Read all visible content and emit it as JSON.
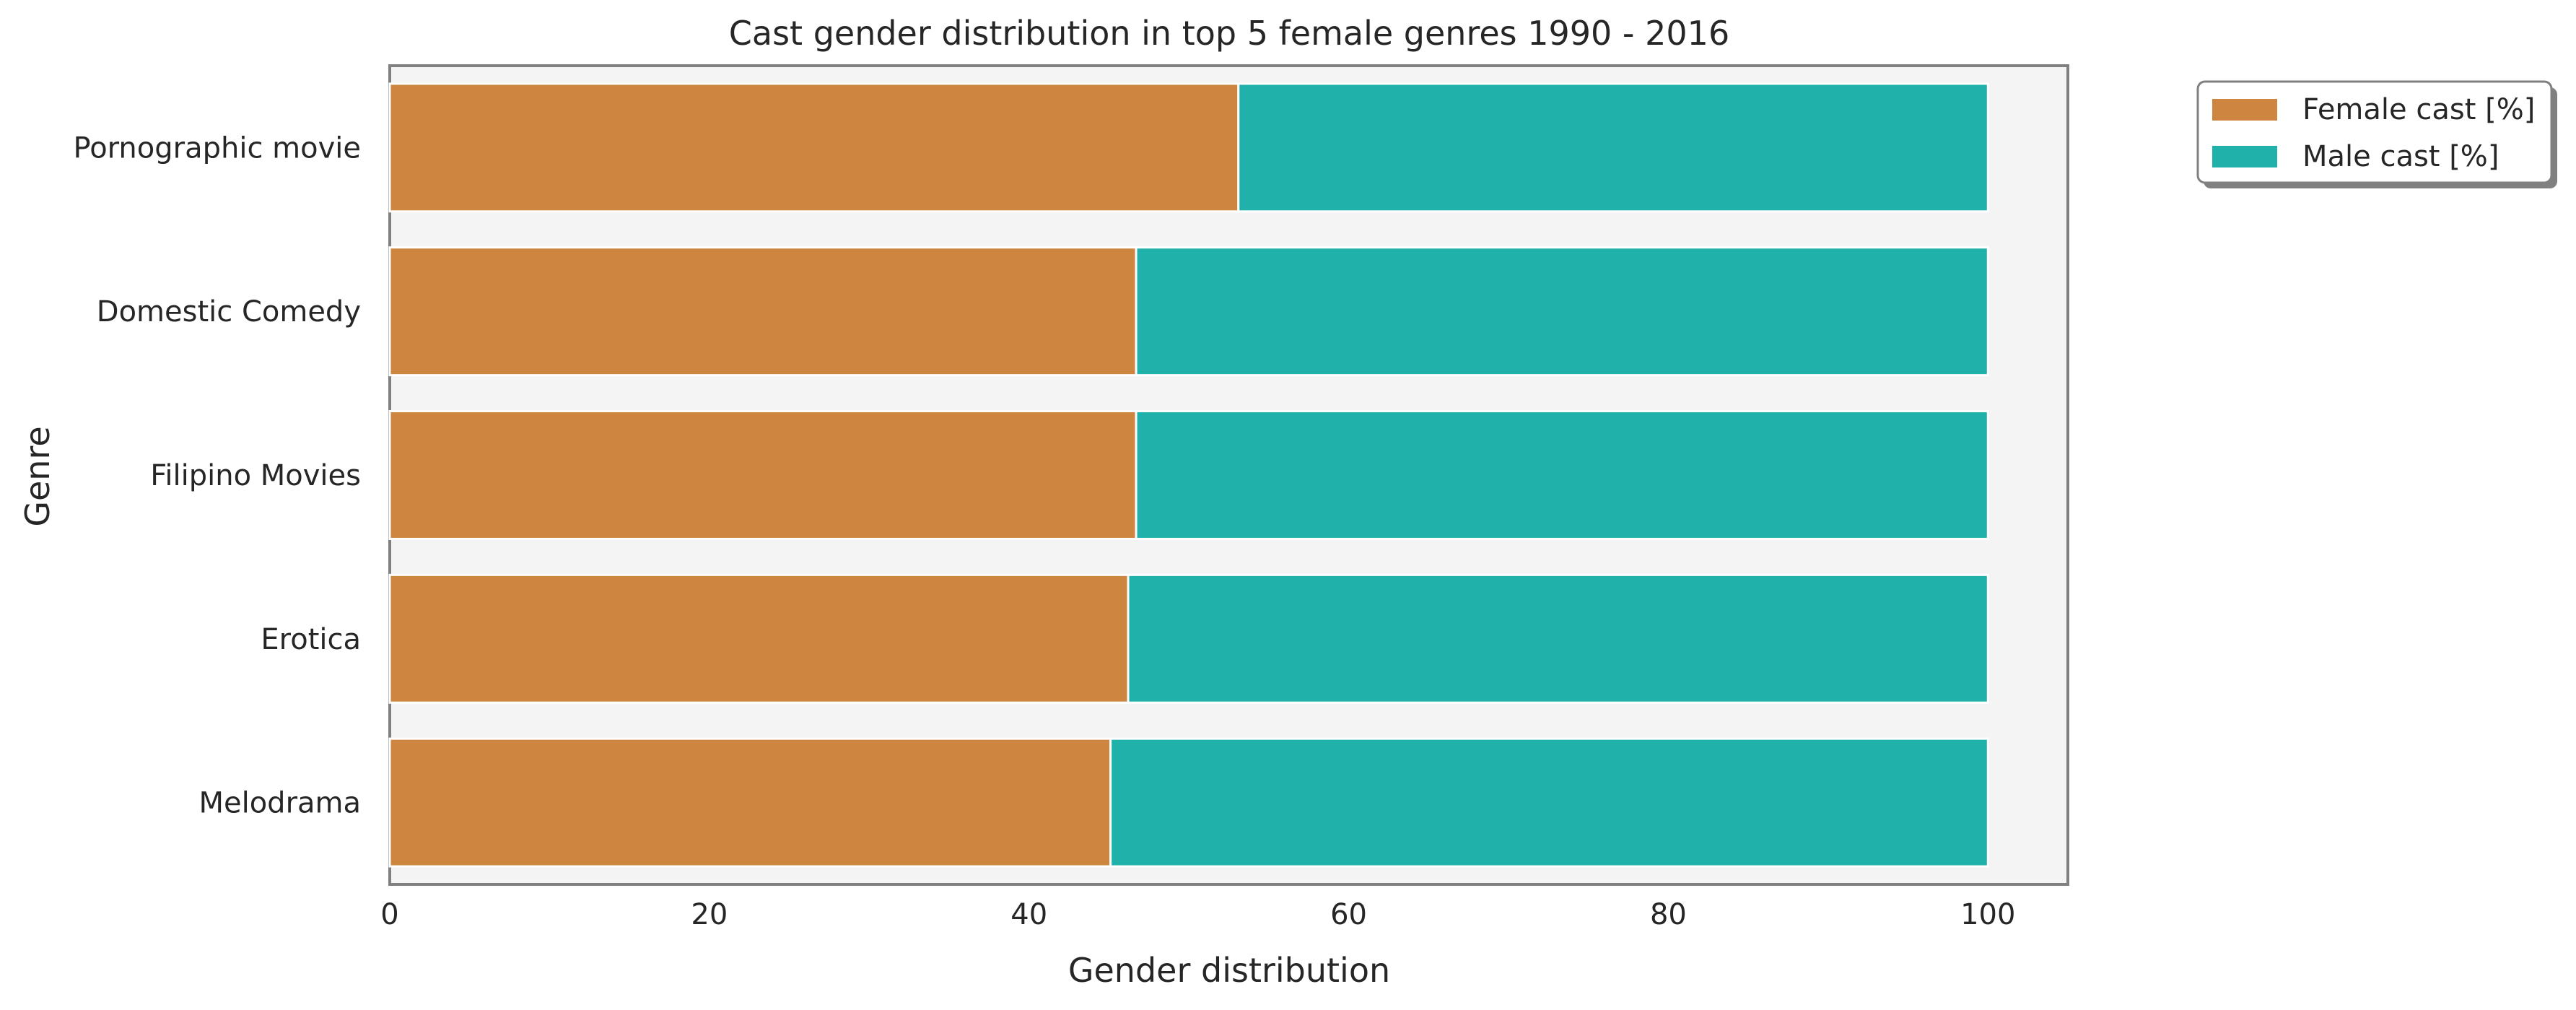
{
  "chart_data": {
    "type": "bar",
    "orientation": "horizontal",
    "stacked": true,
    "title": "Cast gender distribution in top 5 female genres 1990 - 2016",
    "xlabel": "Gender distribution",
    "ylabel": "Genre",
    "xlim": [
      0,
      105
    ],
    "xticks": [
      0,
      20,
      40,
      60,
      80,
      100
    ],
    "categories": [
      "Pornographic movie",
      "Domestic Comedy",
      "Filipino Movies",
      "Erotica",
      "Melodrama"
    ],
    "series": [
      {
        "name": "Female cast [%]",
        "color": "#cd853f",
        "values": [
          53.1,
          46.7,
          46.7,
          46.2,
          45.1
        ]
      },
      {
        "name": "Male cast [%]",
        "color": "#20b2aa",
        "values": [
          46.9,
          53.3,
          53.3,
          53.8,
          54.9
        ]
      }
    ],
    "legend": {
      "placement": "outside top-right"
    },
    "grid": false,
    "plot_background": "#f4f4f4"
  }
}
